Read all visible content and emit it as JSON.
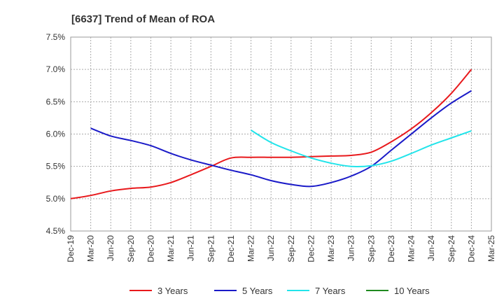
{
  "chart_data": {
    "type": "line",
    "title": "[6637]  Trend of Mean of ROA",
    "xlabel": "",
    "ylabel": "",
    "ylim": [
      4.5,
      7.5
    ],
    "y_ticks": [
      "4.5%",
      "5.0%",
      "5.5%",
      "6.0%",
      "6.5%",
      "7.0%",
      "7.5%"
    ],
    "x_ticks": [
      "Dec-19",
      "Mar-20",
      "Jun-20",
      "Sep-20",
      "Dec-20",
      "Mar-21",
      "Jun-21",
      "Sep-21",
      "Dec-21",
      "Mar-22",
      "Jun-22",
      "Sep-22",
      "Dec-22",
      "Mar-23",
      "Jun-23",
      "Sep-23",
      "Dec-23",
      "Mar-24",
      "Jun-24",
      "Sep-24",
      "Dec-24",
      "Mar-25"
    ],
    "grid": true,
    "legend_position": "bottom",
    "series": [
      {
        "name": "3 Years",
        "color": "#e8191c",
        "values": [
          5.0,
          5.05,
          5.12,
          5.16,
          5.18,
          5.25,
          5.37,
          5.5,
          5.63,
          5.64,
          5.64,
          5.64,
          5.65,
          5.66,
          5.67,
          5.72,
          5.88,
          6.08,
          6.33,
          6.63,
          7.0,
          null
        ]
      },
      {
        "name": "5 Years",
        "color": "#1a1ac8",
        "values": [
          null,
          6.09,
          5.97,
          5.9,
          5.82,
          5.7,
          5.6,
          5.52,
          5.44,
          5.37,
          5.28,
          5.22,
          5.19,
          5.25,
          5.35,
          5.5,
          5.75,
          6.0,
          6.25,
          6.48,
          6.67,
          null
        ]
      },
      {
        "name": "7 Years",
        "color": "#22e4ea",
        "values": [
          null,
          null,
          null,
          null,
          null,
          null,
          null,
          null,
          null,
          6.06,
          5.87,
          5.74,
          5.63,
          5.55,
          5.5,
          5.51,
          5.58,
          5.7,
          5.83,
          5.94,
          6.05,
          null
        ]
      },
      {
        "name": "10 Years",
        "color": "#1f8a1f",
        "values": [
          null,
          null,
          null,
          null,
          null,
          null,
          null,
          null,
          null,
          null,
          null,
          null,
          null,
          null,
          null,
          null,
          null,
          null,
          null,
          null,
          null,
          null
        ]
      }
    ]
  }
}
